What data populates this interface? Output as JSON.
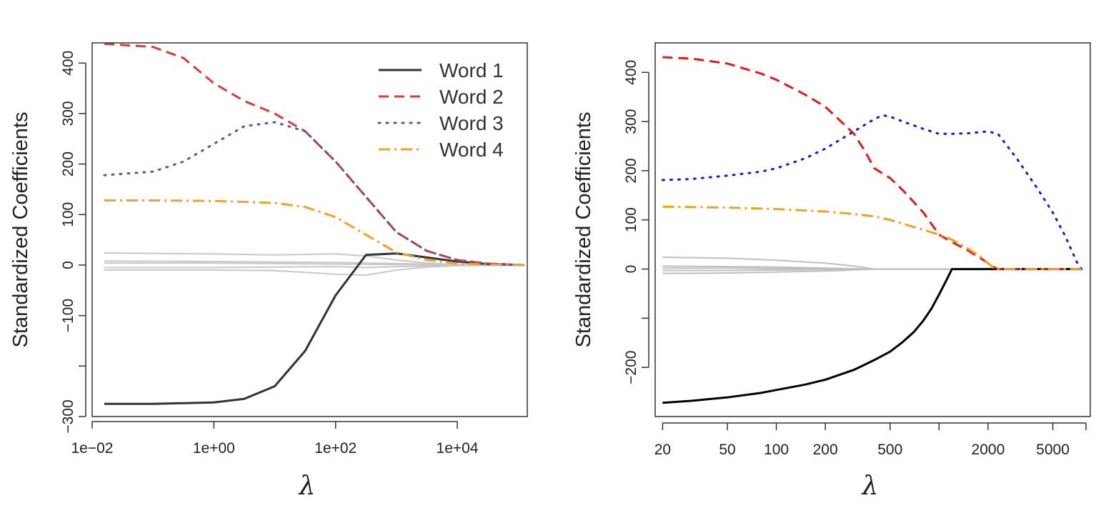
{
  "chart_data": [
    {
      "type": "line",
      "panel": "left",
      "title": "",
      "xlabel": "λ",
      "ylabel": "Standardized Coefficients",
      "x_scale": "log10",
      "xlim_log10": [
        -2,
        5.15
      ],
      "ylim": [
        -300,
        440
      ],
      "grid": false,
      "legend_position": "top-right",
      "x_ticks": [
        {
          "value_log10": -2,
          "label": "1e−02"
        },
        {
          "value_log10": 0,
          "label": "1e+00"
        },
        {
          "value_log10": 2,
          "label": "1e+02"
        },
        {
          "value_log10": 4,
          "label": "1e+04"
        }
      ],
      "y_ticks": [
        {
          "value": -300,
          "label": "−300"
        },
        {
          "value": -200,
          "label": ""
        },
        {
          "value": -100,
          "label": "−100"
        },
        {
          "value": 0,
          "label": "0"
        },
        {
          "value": 100,
          "label": "100"
        },
        {
          "value": 200,
          "label": "200"
        },
        {
          "value": 300,
          "label": "300"
        },
        {
          "value": 400,
          "label": "400"
        }
      ],
      "legend": [
        {
          "label": "Word 1",
          "color": "#333333",
          "dash": "solid"
        },
        {
          "label": "Word 2",
          "color": "#df3a3a",
          "dash": "dashed"
        },
        {
          "label": "Word 3",
          "color": "#4f5aa8",
          "dash": "dotted"
        },
        {
          "label": "Word 4",
          "color": "#f0a22c",
          "dash": "dotdash"
        }
      ],
      "series": [
        {
          "name": "Word 1",
          "color": "#333333",
          "dash": "solid",
          "width": 3,
          "x_log10": [
            -1.8,
            -1,
            0,
            0.5,
            1,
            1.5,
            2,
            2.5,
            3,
            3.5,
            4,
            4.5,
            5.1
          ],
          "values": [
            -275,
            -275,
            -272,
            -265,
            -240,
            -170,
            -60,
            20,
            23,
            15,
            7,
            2,
            0
          ]
        },
        {
          "name": "Word 2",
          "color": "#df3a3a",
          "dash": "dashed",
          "width": 3,
          "x_log10": [
            -1.8,
            -1,
            -0.5,
            0,
            0.5,
            1,
            1.5,
            2,
            2.5,
            3,
            3.5,
            4,
            4.5,
            5.1
          ],
          "values": [
            438,
            432,
            410,
            360,
            325,
            300,
            265,
            205,
            135,
            65,
            28,
            10,
            3,
            0
          ]
        },
        {
          "name": "Word 3",
          "color": "#4f5aa8",
          "dash": "dotted",
          "width": 3,
          "x_log10": [
            -1.8,
            -1,
            -0.5,
            0,
            0.5,
            1,
            1.5,
            2,
            2.5,
            3,
            3.5,
            4,
            4.5,
            5.1
          ],
          "values": [
            178,
            185,
            205,
            240,
            275,
            283,
            265,
            205,
            135,
            65,
            28,
            10,
            3,
            0
          ]
        },
        {
          "name": "Word 4",
          "color": "#f0a22c",
          "dash": "dotdash",
          "width": 3,
          "x_log10": [
            -1.8,
            -1,
            0,
            1,
            1.5,
            2,
            2.5,
            3,
            3.5,
            4,
            4.5,
            5.1
          ],
          "values": [
            128,
            128,
            127,
            123,
            115,
            95,
            60,
            25,
            10,
            3,
            1,
            0
          ]
        },
        {
          "name": "Other 1",
          "color": "#c8c8c8",
          "dash": "solid",
          "width": 2,
          "x_log10": [
            -1.8,
            0,
            1,
            2,
            2.5,
            3,
            3.5,
            4,
            5.1
          ],
          "values": [
            24,
            22,
            20,
            22,
            18,
            10,
            4,
            1,
            0
          ]
        },
        {
          "name": "Other 2",
          "color": "#c8c8c8",
          "dash": "solid",
          "width": 2,
          "x_log10": [
            -1.8,
            0,
            1,
            2,
            3,
            4,
            5.1
          ],
          "values": [
            8,
            7,
            6,
            5,
            3,
            1,
            0
          ]
        },
        {
          "name": "Other 3",
          "color": "#c8c8c8",
          "dash": "solid",
          "width": 2,
          "x_log10": [
            -1.8,
            0,
            1,
            2,
            3,
            4,
            5.1
          ],
          "values": [
            4,
            4,
            3,
            2,
            1,
            0,
            0
          ]
        },
        {
          "name": "Other 4",
          "color": "#c8c8c8",
          "dash": "solid",
          "width": 2,
          "x_log10": [
            -1.8,
            0,
            1,
            2,
            2.5,
            3,
            4,
            5.1
          ],
          "values": [
            -5,
            -5,
            -4,
            -3,
            -5,
            -3,
            -1,
            0
          ]
        },
        {
          "name": "Other 5",
          "color": "#c8c8c8",
          "dash": "solid",
          "width": 2,
          "x_log10": [
            -1.8,
            0,
            1,
            2,
            2.5,
            3,
            3.5,
            4,
            5.1
          ],
          "values": [
            -10,
            -10,
            -11,
            -18,
            -20,
            -10,
            -4,
            -1,
            0
          ]
        }
      ]
    },
    {
      "type": "line",
      "panel": "right",
      "title": "",
      "xlabel": "λ",
      "ylabel": "Standardized Coefficients",
      "x_scale": "log10",
      "xlim": [
        18,
        8500
      ],
      "ylim": [
        -300,
        460
      ],
      "grid": false,
      "legend_position": "none",
      "x_ticks": [
        {
          "value": 20,
          "label": "20"
        },
        {
          "value": 50,
          "label": "50"
        },
        {
          "value": 100,
          "label": "100"
        },
        {
          "value": 200,
          "label": "200"
        },
        {
          "value": 500,
          "label": "500"
        },
        {
          "value": 1000,
          "label": ""
        },
        {
          "value": 2000,
          "label": "2000"
        },
        {
          "value": 5000,
          "label": "5000"
        },
        {
          "value": 8000,
          "label": ""
        }
      ],
      "y_ticks": [
        {
          "value": -200,
          "label": "−200"
        },
        {
          "value": -100,
          "label": ""
        },
        {
          "value": 0,
          "label": "0"
        },
        {
          "value": 100,
          "label": "100"
        },
        {
          "value": 200,
          "label": "200"
        },
        {
          "value": 300,
          "label": "300"
        },
        {
          "value": 400,
          "label": "400"
        }
      ],
      "series": [
        {
          "name": "Word 1",
          "color": "#000000",
          "dash": "solid",
          "width": 3,
          "x": [
            20,
            30,
            50,
            80,
            100,
            150,
            200,
            300,
            400,
            500,
            600,
            700,
            800,
            900,
            1000,
            1100,
            1200,
            2000,
            7500
          ],
          "values": [
            -272,
            -268,
            -261,
            -252,
            -246,
            -235,
            -225,
            -205,
            -185,
            -168,
            -148,
            -128,
            -105,
            -80,
            -52,
            -25,
            0,
            0,
            0
          ]
        },
        {
          "name": "Word 2",
          "color": "#e21a1a",
          "dash": "dashed",
          "width": 3,
          "x": [
            20,
            30,
            50,
            80,
            100,
            150,
            200,
            250,
            300,
            350,
            400,
            500,
            600,
            800,
            1000,
            1200,
            1500,
            1800,
            2000,
            2200,
            2300,
            7500
          ],
          "values": [
            431,
            428,
            418,
            398,
            385,
            355,
            330,
            300,
            275,
            240,
            205,
            185,
            160,
            115,
            70,
            55,
            38,
            22,
            12,
            3,
            0,
            0
          ]
        },
        {
          "name": "Word 3",
          "color": "#1a1ad1",
          "dash": "dotted",
          "width": 3,
          "x": [
            20,
            30,
            50,
            80,
            100,
            150,
            200,
            300,
            400,
            450,
            500,
            600,
            800,
            1000,
            1200,
            1500,
            2000,
            2300,
            3000,
            4000,
            5000,
            6000,
            7000,
            7500
          ],
          "values": [
            181,
            183,
            190,
            198,
            205,
            225,
            245,
            280,
            305,
            313,
            310,
            300,
            285,
            275,
            275,
            276,
            280,
            275,
            225,
            165,
            115,
            65,
            15,
            0
          ]
        },
        {
          "name": "Word 4",
          "color": "#f0a21a",
          "dash": "dotdash",
          "width": 3,
          "x": [
            20,
            30,
            50,
            100,
            200,
            300,
            400,
            500,
            600,
            800,
            1000,
            1200,
            1500,
            1800,
            2000,
            2200,
            7500
          ],
          "values": [
            127,
            126,
            125,
            122,
            117,
            112,
            107,
            100,
            92,
            80,
            70,
            60,
            42,
            25,
            12,
            0,
            0
          ]
        },
        {
          "name": "Other 1",
          "color": "#c0c0c0",
          "dash": "solid",
          "width": 2,
          "x": [
            20,
            50,
            100,
            200,
            300,
            400,
            7500
          ],
          "values": [
            24,
            22,
            18,
            12,
            6,
            0,
            0
          ]
        },
        {
          "name": "Other 2",
          "color": "#c0c0c0",
          "dash": "solid",
          "width": 2,
          "x": [
            20,
            50,
            100,
            200,
            400,
            7500
          ],
          "values": [
            6,
            5,
            4,
            2,
            0,
            0
          ]
        },
        {
          "name": "Other 3",
          "color": "#c0c0c0",
          "dash": "solid",
          "width": 2,
          "x": [
            20,
            50,
            100,
            200,
            400,
            7500
          ],
          "values": [
            2,
            2,
            1,
            1,
            0,
            0
          ]
        },
        {
          "name": "Other 4",
          "color": "#c0c0c0",
          "dash": "solid",
          "width": 2,
          "x": [
            20,
            50,
            100,
            200,
            400,
            7500
          ],
          "values": [
            -3,
            -3,
            -2,
            -1,
            0,
            0
          ]
        },
        {
          "name": "Other 5",
          "color": "#c0c0c0",
          "dash": "solid",
          "width": 2,
          "x": [
            20,
            50,
            100,
            200,
            300,
            400,
            7500
          ],
          "values": [
            -9,
            -8,
            -6,
            -4,
            -2,
            0,
            0
          ]
        }
      ]
    }
  ]
}
